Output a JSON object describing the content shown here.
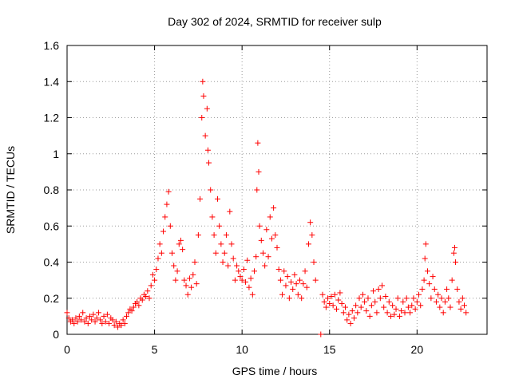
{
  "chart_data": {
    "type": "scatter",
    "title": "Day 302 of 2024, SRMTID for receiver sulp",
    "xlabel": "GPS time / hours",
    "ylabel": "SRMTID / TECUs",
    "xlim": [
      0,
      24
    ],
    "ylim": [
      0,
      1.6
    ],
    "x_ticks": [
      0,
      5,
      10,
      15,
      20
    ],
    "x_tick_labels": [
      "0",
      "5",
      "10",
      "15",
      "20"
    ],
    "y_ticks": [
      0,
      0.2,
      0.4,
      0.6,
      0.8,
      1.0,
      1.2,
      1.4,
      1.6
    ],
    "y_tick_labels": [
      "0",
      "0.2",
      "0.4",
      "0.6",
      "0.8",
      "1",
      "1.2",
      "1.4",
      "1.6"
    ],
    "grid": true,
    "marker": "+",
    "marker_color": "#ff0000",
    "series": [
      {
        "name": "SRMTID",
        "color": "#ff0000",
        "points": [
          [
            0.0,
            0.12
          ],
          [
            0.1,
            0.09
          ],
          [
            0.2,
            0.07
          ],
          [
            0.3,
            0.08
          ],
          [
            0.4,
            0.06
          ],
          [
            0.5,
            0.09
          ],
          [
            0.6,
            0.07
          ],
          [
            0.7,
            0.1
          ],
          [
            0.8,
            0.08
          ],
          [
            0.9,
            0.12
          ],
          [
            1.0,
            0.07
          ],
          [
            1.1,
            0.09
          ],
          [
            1.2,
            0.06
          ],
          [
            1.3,
            0.1
          ],
          [
            1.4,
            0.08
          ],
          [
            1.5,
            0.11
          ],
          [
            1.6,
            0.07
          ],
          [
            1.7,
            0.09
          ],
          [
            1.8,
            0.12
          ],
          [
            1.9,
            0.08
          ],
          [
            2.0,
            0.06
          ],
          [
            2.1,
            0.1
          ],
          [
            2.2,
            0.07
          ],
          [
            2.3,
            0.11
          ],
          [
            2.4,
            0.06
          ],
          [
            2.5,
            0.09
          ],
          [
            2.6,
            0.08
          ],
          [
            2.7,
            0.05
          ],
          [
            2.8,
            0.07
          ],
          [
            2.9,
            0.04
          ],
          [
            3.0,
            0.06
          ],
          [
            3.1,
            0.05
          ],
          [
            3.2,
            0.08
          ],
          [
            3.3,
            0.06
          ],
          [
            3.4,
            0.1
          ],
          [
            3.5,
            0.12
          ],
          [
            3.6,
            0.14
          ],
          [
            3.7,
            0.13
          ],
          [
            3.8,
            0.15
          ],
          [
            3.9,
            0.17
          ],
          [
            4.0,
            0.18
          ],
          [
            4.1,
            0.16
          ],
          [
            4.2,
            0.2
          ],
          [
            4.3,
            0.19
          ],
          [
            4.4,
            0.22
          ],
          [
            4.5,
            0.21
          ],
          [
            4.6,
            0.24
          ],
          [
            4.7,
            0.2
          ],
          [
            4.8,
            0.27
          ],
          [
            4.9,
            0.33
          ],
          [
            5.0,
            0.3
          ],
          [
            5.1,
            0.36
          ],
          [
            5.2,
            0.42
          ],
          [
            5.3,
            0.5
          ],
          [
            5.4,
            0.45
          ],
          [
            5.5,
            0.57
          ],
          [
            5.6,
            0.65
          ],
          [
            5.7,
            0.72
          ],
          [
            5.8,
            0.79
          ],
          [
            5.9,
            0.6
          ],
          [
            6.0,
            0.45
          ],
          [
            6.1,
            0.38
          ],
          [
            6.2,
            0.3
          ],
          [
            6.3,
            0.35
          ],
          [
            6.4,
            0.5
          ],
          [
            6.5,
            0.52
          ],
          [
            6.6,
            0.47
          ],
          [
            6.7,
            0.3
          ],
          [
            6.8,
            0.27
          ],
          [
            6.9,
            0.22
          ],
          [
            7.0,
            0.31
          ],
          [
            7.1,
            0.26
          ],
          [
            7.2,
            0.33
          ],
          [
            7.3,
            0.4
          ],
          [
            7.4,
            0.28
          ],
          [
            7.5,
            0.55
          ],
          [
            7.6,
            0.75
          ],
          [
            7.7,
            1.2
          ],
          [
            7.75,
            1.4
          ],
          [
            7.8,
            1.32
          ],
          [
            7.9,
            1.1
          ],
          [
            8.0,
            1.25
          ],
          [
            8.05,
            1.02
          ],
          [
            8.1,
            0.95
          ],
          [
            8.2,
            0.8
          ],
          [
            8.3,
            0.65
          ],
          [
            8.4,
            0.55
          ],
          [
            8.5,
            0.45
          ],
          [
            8.6,
            0.75
          ],
          [
            8.7,
            0.6
          ],
          [
            8.8,
            0.5
          ],
          [
            8.9,
            0.4
          ],
          [
            9.0,
            0.45
          ],
          [
            9.1,
            0.55
          ],
          [
            9.2,
            0.38
          ],
          [
            9.3,
            0.68
          ],
          [
            9.4,
            0.5
          ],
          [
            9.5,
            0.42
          ],
          [
            9.6,
            0.3
          ],
          [
            9.7,
            0.38
          ],
          [
            9.8,
            0.35
          ],
          [
            9.9,
            0.32
          ],
          [
            10.0,
            0.3
          ],
          [
            10.1,
            0.36
          ],
          [
            10.2,
            0.29
          ],
          [
            10.3,
            0.41
          ],
          [
            10.4,
            0.26
          ],
          [
            10.5,
            0.31
          ],
          [
            10.6,
            0.22
          ],
          [
            10.7,
            0.35
          ],
          [
            10.8,
            0.43
          ],
          [
            10.85,
            0.8
          ],
          [
            10.9,
            1.06
          ],
          [
            10.95,
            0.9
          ],
          [
            11.0,
            0.6
          ],
          [
            11.1,
            0.52
          ],
          [
            11.2,
            0.45
          ],
          [
            11.3,
            0.38
          ],
          [
            11.4,
            0.58
          ],
          [
            11.5,
            0.43
          ],
          [
            11.6,
            0.65
          ],
          [
            11.7,
            0.53
          ],
          [
            11.8,
            0.7
          ],
          [
            11.9,
            0.55
          ],
          [
            12.0,
            0.48
          ],
          [
            12.1,
            0.36
          ],
          [
            12.2,
            0.3
          ],
          [
            12.3,
            0.22
          ],
          [
            12.4,
            0.35
          ],
          [
            12.5,
            0.27
          ],
          [
            12.6,
            0.32
          ],
          [
            12.7,
            0.2
          ],
          [
            12.8,
            0.29
          ],
          [
            12.9,
            0.25
          ],
          [
            13.0,
            0.33
          ],
          [
            13.1,
            0.28
          ],
          [
            13.2,
            0.22
          ],
          [
            13.3,
            0.3
          ],
          [
            13.4,
            0.2
          ],
          [
            13.5,
            0.28
          ],
          [
            13.6,
            0.35
          ],
          [
            13.7,
            0.26
          ],
          [
            13.8,
            0.5
          ],
          [
            13.9,
            0.62
          ],
          [
            14.0,
            0.55
          ],
          [
            14.1,
            0.4
          ],
          [
            14.2,
            0.3
          ],
          [
            14.5,
            0.0
          ],
          [
            14.6,
            0.22
          ],
          [
            14.7,
            0.18
          ],
          [
            14.8,
            0.15
          ],
          [
            14.9,
            0.2
          ],
          [
            15.0,
            0.17
          ],
          [
            15.1,
            0.21
          ],
          [
            15.2,
            0.16
          ],
          [
            15.3,
            0.22
          ],
          [
            15.4,
            0.14
          ],
          [
            15.5,
            0.19
          ],
          [
            15.6,
            0.23
          ],
          [
            15.7,
            0.17
          ],
          [
            15.8,
            0.12
          ],
          [
            15.9,
            0.15
          ],
          [
            16.0,
            0.08
          ],
          [
            16.1,
            0.11
          ],
          [
            16.2,
            0.06
          ],
          [
            16.3,
            0.13
          ],
          [
            16.4,
            0.09
          ],
          [
            16.5,
            0.16
          ],
          [
            16.6,
            0.12
          ],
          [
            16.7,
            0.2
          ],
          [
            16.8,
            0.15
          ],
          [
            16.9,
            0.22
          ],
          [
            17.0,
            0.18
          ],
          [
            17.1,
            0.13
          ],
          [
            17.2,
            0.2
          ],
          [
            17.3,
            0.1
          ],
          [
            17.4,
            0.16
          ],
          [
            17.5,
            0.24
          ],
          [
            17.6,
            0.18
          ],
          [
            17.7,
            0.12
          ],
          [
            17.8,
            0.25
          ],
          [
            17.9,
            0.2
          ],
          [
            18.0,
            0.27
          ],
          [
            18.1,
            0.15
          ],
          [
            18.2,
            0.21
          ],
          [
            18.3,
            0.12
          ],
          [
            18.4,
            0.18
          ],
          [
            18.5,
            0.1
          ],
          [
            18.6,
            0.16
          ],
          [
            18.7,
            0.11
          ],
          [
            18.8,
            0.14
          ],
          [
            18.9,
            0.2
          ],
          [
            19.0,
            0.1
          ],
          [
            19.1,
            0.13
          ],
          [
            19.2,
            0.18
          ],
          [
            19.3,
            0.12
          ],
          [
            19.4,
            0.2
          ],
          [
            19.5,
            0.15
          ],
          [
            19.6,
            0.12
          ],
          [
            19.7,
            0.16
          ],
          [
            19.8,
            0.2
          ],
          [
            19.9,
            0.14
          ],
          [
            20.0,
            0.18
          ],
          [
            20.1,
            0.22
          ],
          [
            20.2,
            0.16
          ],
          [
            20.3,
            0.25
          ],
          [
            20.4,
            0.3
          ],
          [
            20.45,
            0.42
          ],
          [
            20.5,
            0.5
          ],
          [
            20.6,
            0.35
          ],
          [
            20.7,
            0.28
          ],
          [
            20.8,
            0.2
          ],
          [
            20.9,
            0.32
          ],
          [
            21.0,
            0.25
          ],
          [
            21.1,
            0.18
          ],
          [
            21.2,
            0.22
          ],
          [
            21.3,
            0.15
          ],
          [
            21.4,
            0.2
          ],
          [
            21.5,
            0.12
          ],
          [
            21.6,
            0.18
          ],
          [
            21.7,
            0.25
          ],
          [
            21.8,
            0.2
          ],
          [
            21.9,
            0.15
          ],
          [
            22.0,
            0.3
          ],
          [
            22.1,
            0.45
          ],
          [
            22.15,
            0.48
          ],
          [
            22.2,
            0.4
          ],
          [
            22.3,
            0.25
          ],
          [
            22.4,
            0.18
          ],
          [
            22.5,
            0.14
          ],
          [
            22.6,
            0.2
          ],
          [
            22.7,
            0.16
          ],
          [
            22.8,
            0.12
          ]
        ]
      }
    ]
  }
}
